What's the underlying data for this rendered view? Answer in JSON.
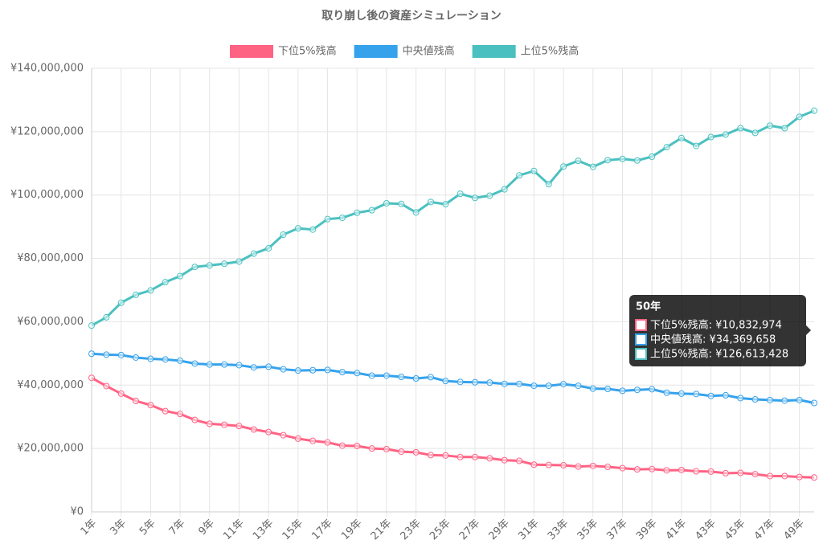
{
  "chart_data": {
    "type": "line",
    "title": "取り崩し後の資産シミュレーション",
    "categories": [
      "1年",
      null,
      "3年",
      null,
      "5年",
      null,
      "7年",
      null,
      "9年",
      null,
      "11年",
      null,
      "13年",
      null,
      "15年",
      null,
      "17年",
      null,
      "19年",
      null,
      "21年",
      null,
      "23年",
      null,
      "25年",
      null,
      "27年",
      null,
      "29年",
      null,
      "31年",
      null,
      "33年",
      null,
      "35年",
      null,
      "37年",
      null,
      "39年",
      null,
      "41年",
      null,
      "43年",
      null,
      "45年",
      null,
      "47年",
      null,
      "49年",
      null
    ],
    "series": [
      {
        "name": "下位5%残高",
        "color": "#ff6384",
        "values": [
          42300000,
          39700000,
          37300000,
          35000000,
          33700000,
          31800000,
          30900000,
          29000000,
          27800000,
          27500000,
          27100000,
          26000000,
          25200000,
          24200000,
          23100000,
          22400000,
          21900000,
          20900000,
          20800000,
          20000000,
          19800000,
          19000000,
          18800000,
          17900000,
          17800000,
          17300000,
          17300000,
          16900000,
          16300000,
          16100000,
          14900000,
          14800000,
          14700000,
          14300000,
          14500000,
          14200000,
          13800000,
          13400000,
          13500000,
          13100000,
          13200000,
          12800000,
          12700000,
          12200000,
          12300000,
          11900000,
          11300000,
          11300000,
          11000000,
          10832974
        ]
      },
      {
        "name": "中央値残高",
        "color": "#36a2eb",
        "values": [
          49900000,
          49600000,
          49500000,
          48700000,
          48300000,
          48100000,
          47700000,
          46800000,
          46500000,
          46500000,
          46300000,
          45600000,
          45800000,
          45000000,
          44600000,
          44700000,
          44800000,
          44100000,
          43800000,
          43000000,
          43000000,
          42600000,
          42100000,
          42500000,
          41300000,
          41000000,
          40900000,
          40800000,
          40400000,
          40400000,
          39800000,
          39800000,
          40300000,
          39800000,
          38900000,
          38800000,
          38200000,
          38500000,
          38700000,
          37600000,
          37300000,
          37200000,
          36600000,
          36800000,
          35900000,
          35500000,
          35300000,
          35100000,
          35300000,
          34369658
        ]
      },
      {
        "name": "上位5%残高",
        "color": "#4bc0c0",
        "values": [
          58800000,
          61400000,
          66000000,
          68500000,
          69900000,
          72500000,
          74400000,
          77300000,
          77800000,
          78300000,
          79000000,
          81500000,
          83200000,
          87500000,
          89500000,
          89100000,
          92400000,
          92800000,
          94400000,
          95200000,
          97400000,
          97200000,
          94500000,
          97800000,
          97100000,
          100400000,
          99100000,
          99800000,
          101800000,
          106200000,
          107600000,
          103400000,
          109000000,
          110800000,
          108900000,
          111000000,
          111400000,
          110900000,
          112100000,
          115100000,
          118000000,
          115500000,
          118300000,
          119100000,
          121100000,
          119600000,
          121900000,
          121100000,
          124700000,
          126613428
        ]
      }
    ],
    "ylim": [
      0,
      140000000
    ],
    "yticks": [
      {
        "value": 0,
        "label": "¥0"
      },
      {
        "value": 20000000,
        "label": "¥20,000,000"
      },
      {
        "value": 40000000,
        "label": "¥40,000,000"
      },
      {
        "value": 60000000,
        "label": "¥60,000,000"
      },
      {
        "value": 80000000,
        "label": "¥80,000,000"
      },
      {
        "value": 100000000,
        "label": "¥100,000,000"
      },
      {
        "value": 120000000,
        "label": "¥120,000,000"
      },
      {
        "value": 140000000,
        "label": "¥140,000,000"
      }
    ],
    "grid": true,
    "legend": "top",
    "tooltip": {
      "title": "50年",
      "items": [
        "下位5%残高: ¥10,832,974",
        "中央値残高: ¥34,369,658",
        "上位5%残高: ¥126,613,428"
      ]
    }
  }
}
